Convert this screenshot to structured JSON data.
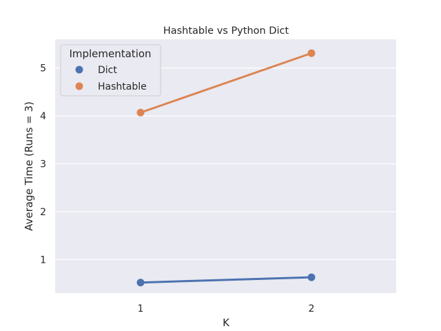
{
  "chart_data": {
    "type": "line",
    "title": "Hashtable vs Python Dict",
    "xlabel": "K",
    "ylabel": "Average Time (Runs = 3)",
    "categories": [
      "1",
      "2"
    ],
    "ylim": [
      0.3,
      5.6
    ],
    "yticks": [
      1,
      2,
      3,
      4,
      5
    ],
    "grid": true,
    "legend": {
      "title": "Implementation",
      "placement": "top-left"
    },
    "series": [
      {
        "name": "Dict",
        "color": "#4c72b0",
        "values": [
          0.52,
          0.63
        ]
      },
      {
        "name": "Hashtable",
        "color": "#dd8452",
        "values": [
          4.07,
          5.31
        ]
      }
    ]
  }
}
